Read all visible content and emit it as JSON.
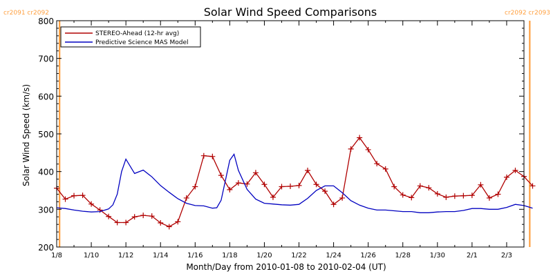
{
  "chart_data": {
    "type": "line",
    "title": "Solar Wind Speed Comparisons",
    "xlabel": "Month/Day from 2010-01-08 to 2010-02-04 (UT)",
    "ylabel": "Solar Wind Speed (km/s)",
    "ylim": [
      200,
      800
    ],
    "xlim": [
      "2010-01-08",
      "2010-02-04"
    ],
    "y_ticks": [
      200,
      300,
      400,
      500,
      600,
      700,
      800
    ],
    "y_tick_labels": [
      "200",
      "300",
      "400",
      "500",
      "600",
      "700",
      "800"
    ],
    "x_ticks": [
      "2010-01-08",
      "2010-01-10",
      "2010-01-12",
      "2010-01-14",
      "2010-01-16",
      "2010-01-18",
      "2010-01-20",
      "2010-01-22",
      "2010-01-24",
      "2010-01-26",
      "2010-01-28",
      "2010-01-30",
      "2010-02-01",
      "2010-02-03"
    ],
    "x_tick_labels": [
      "1/8",
      "1/10",
      "1/12",
      "1/14",
      "1/16",
      "1/18",
      "1/20",
      "1/22",
      "1/24",
      "1/26",
      "1/28",
      "1/30",
      "2/1",
      "2/3"
    ],
    "legend_position": "top-left",
    "series": [
      {
        "name": "STEREO-Ahead (12-hr avg)",
        "color": "#b00000",
        "marker": "plus",
        "x": [
          "2010-01-08 00:00",
          "2010-01-08 12:00",
          "2010-01-09 00:00",
          "2010-01-09 12:00",
          "2010-01-10 00:00",
          "2010-01-10 12:00",
          "2010-01-11 00:00",
          "2010-01-11 12:00",
          "2010-01-12 00:00",
          "2010-01-12 12:00",
          "2010-01-13 00:00",
          "2010-01-13 12:00",
          "2010-01-14 00:00",
          "2010-01-14 12:00",
          "2010-01-15 00:00",
          "2010-01-15 12:00",
          "2010-01-16 00:00",
          "2010-01-16 12:00",
          "2010-01-17 00:00",
          "2010-01-17 12:00",
          "2010-01-18 00:00",
          "2010-01-18 12:00",
          "2010-01-19 00:00",
          "2010-01-19 12:00",
          "2010-01-20 00:00",
          "2010-01-20 12:00",
          "2010-01-21 00:00",
          "2010-01-21 12:00",
          "2010-01-22 00:00",
          "2010-01-22 12:00",
          "2010-01-23 00:00",
          "2010-01-23 12:00",
          "2010-01-24 00:00",
          "2010-01-24 12:00",
          "2010-01-25 00:00",
          "2010-01-25 12:00",
          "2010-01-26 00:00",
          "2010-01-26 12:00",
          "2010-01-27 00:00",
          "2010-01-27 12:00",
          "2010-01-28 00:00",
          "2010-01-28 12:00",
          "2010-01-29 00:00",
          "2010-01-29 12:00",
          "2010-01-30 00:00",
          "2010-01-30 12:00",
          "2010-01-31 00:00",
          "2010-01-31 12:00",
          "2010-02-01 00:00",
          "2010-02-01 12:00",
          "2010-02-02 00:00",
          "2010-02-02 12:00",
          "2010-02-03 00:00",
          "2010-02-03 12:00",
          "2010-02-04 00:00",
          "2010-02-04 12:00"
        ],
        "y": [
          356,
          327,
          336,
          337,
          314,
          298,
          281,
          265,
          265,
          280,
          284,
          282,
          264,
          254,
          267,
          330,
          360,
          442,
          440,
          390,
          352,
          370,
          367,
          397,
          366,
          332,
          360,
          361,
          363,
          403,
          366,
          348,
          313,
          330,
          460,
          490,
          458,
          421,
          407,
          360,
          338,
          331,
          362,
          357,
          341,
          332,
          335,
          336,
          337,
          365,
          330,
          340,
          385,
          403,
          387,
          362
        ]
      },
      {
        "name": "Predictive Science MAS Model",
        "color": "#0000c0",
        "marker": "none",
        "x": [
          "2010-01-08 00:00",
          "2010-01-08 12:00",
          "2010-01-09 00:00",
          "2010-01-09 12:00",
          "2010-01-10 00:00",
          "2010-01-10 12:00",
          "2010-01-11 00:00",
          "2010-01-11 06:00",
          "2010-01-11 12:00",
          "2010-01-11 18:00",
          "2010-01-12 00:00",
          "2010-01-12 12:00",
          "2010-01-13 00:00",
          "2010-01-13 12:00",
          "2010-01-14 00:00",
          "2010-01-14 12:00",
          "2010-01-15 00:00",
          "2010-01-15 12:00",
          "2010-01-16 00:00",
          "2010-01-16 12:00",
          "2010-01-17 00:00",
          "2010-01-17 06:00",
          "2010-01-17 12:00",
          "2010-01-18 00:00",
          "2010-01-18 06:00",
          "2010-01-18 12:00",
          "2010-01-19 00:00",
          "2010-01-19 12:00",
          "2010-01-20 00:00",
          "2010-01-20 12:00",
          "2010-01-21 00:00",
          "2010-01-21 12:00",
          "2010-01-22 00:00",
          "2010-01-22 12:00",
          "2010-01-23 00:00",
          "2010-01-23 12:00",
          "2010-01-24 00:00",
          "2010-01-24 12:00",
          "2010-01-25 00:00",
          "2010-01-25 12:00",
          "2010-01-26 00:00",
          "2010-01-26 12:00",
          "2010-01-27 00:00",
          "2010-01-27 12:00",
          "2010-01-28 00:00",
          "2010-01-28 12:00",
          "2010-01-29 00:00",
          "2010-01-29 12:00",
          "2010-01-30 00:00",
          "2010-01-30 12:00",
          "2010-01-31 00:00",
          "2010-01-31 12:00",
          "2010-02-01 00:00",
          "2010-02-01 12:00",
          "2010-02-02 00:00",
          "2010-02-02 12:00",
          "2010-02-03 00:00",
          "2010-02-03 12:00",
          "2010-02-04 00:00",
          "2010-02-04 12:00"
        ],
        "y": [
          304,
          302,
          298,
          295,
          293,
          294,
          301,
          312,
          340,
          400,
          433,
          395,
          404,
          386,
          363,
          345,
          328,
          316,
          310,
          309,
          303,
          304,
          324,
          430,
          446,
          403,
          353,
          327,
          316,
          314,
          312,
          311,
          313,
          329,
          350,
          362,
          362,
          344,
          323,
          311,
          303,
          298,
          298,
          296,
          294,
          294,
          291,
          291,
          293,
          294,
          294,
          297,
          302,
          302,
          300,
          300,
          305,
          313,
          310,
          303
        ]
      }
    ],
    "vertical_markers": [
      {
        "x": "2010-01-08 04:00",
        "label": "cr2091 cr2092",
        "color": "#ffa040",
        "label_position": "top-left"
      },
      {
        "x": "2010-02-04 08:00",
        "label": "cr2092 cr2093",
        "color": "#ffa040",
        "label_position": "top-right"
      }
    ]
  }
}
